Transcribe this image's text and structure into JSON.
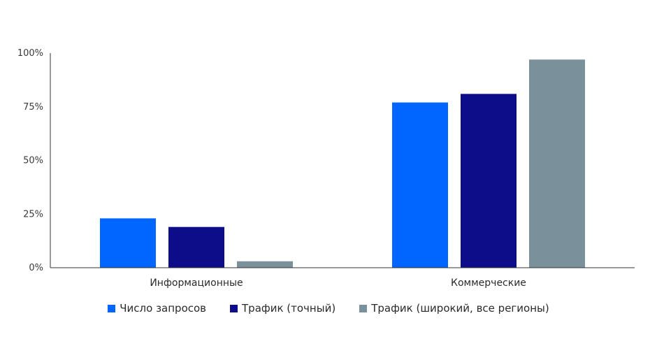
{
  "chart_data": {
    "type": "bar",
    "title": "",
    "xlabel": "",
    "ylabel": "",
    "categories": [
      "Информационные",
      "Коммерческие"
    ],
    "series": [
      {
        "name": "Число запросов",
        "color": "#0066ff",
        "values": [
          23,
          77
        ]
      },
      {
        "name": "Трафик (точный)",
        "color": "#0d0d8a",
        "values": [
          19,
          81
        ]
      },
      {
        "name": "Трафик (широкий, все регионы)",
        "color": "#7a909b",
        "values": [
          3,
          97
        ]
      }
    ],
    "ylim": [
      0,
      100
    ],
    "yticks": [
      "0%",
      "25%",
      "50%",
      "75%",
      "100%"
    ],
    "ytick_values": [
      0,
      25,
      50,
      75,
      100
    ],
    "grid": false,
    "legend_position": "bottom"
  }
}
